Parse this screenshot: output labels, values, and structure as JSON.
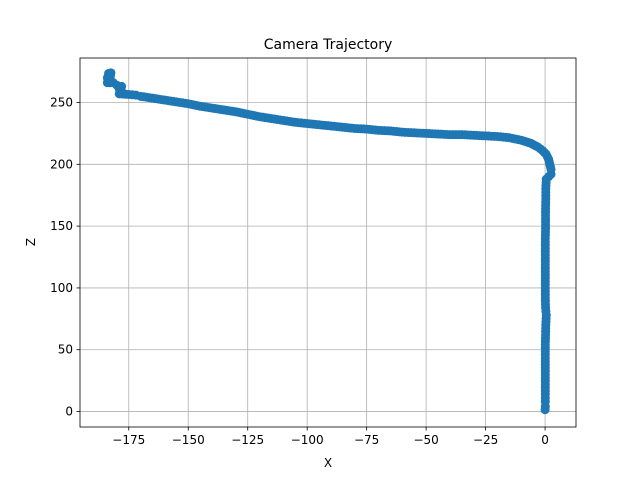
{
  "chart_data": {
    "type": "scatter",
    "title": "Camera Trajectory",
    "xlabel": "X",
    "ylabel": "Z",
    "xlim": [
      -195.5,
      13
    ],
    "ylim": [
      -12.5,
      286
    ],
    "grid": true,
    "marker_color": "#1f77b4",
    "xticks": [
      -175,
      -150,
      -125,
      -100,
      -75,
      -50,
      -25,
      0
    ],
    "xtick_labels": [
      "−175",
      "−150",
      "−125",
      "−100",
      "−75",
      "−50",
      "−25",
      "0"
    ],
    "yticks": [
      0,
      50,
      100,
      150,
      200,
      250
    ],
    "ytick_labels": [
      "0",
      "50",
      "100",
      "150",
      "200",
      "250"
    ],
    "series": [
      {
        "points": [
          [
            -183.5,
            273.5
          ],
          [
            -184,
            270
          ],
          [
            -182.5,
            274
          ],
          [
            -183,
            268
          ],
          [
            -184,
            266
          ],
          [
            -181.5,
            266
          ],
          [
            -180,
            264
          ],
          [
            -178,
            263
          ],
          [
            -179,
            261
          ],
          [
            -178,
            259
          ],
          [
            -179,
            257
          ],
          [
            -175,
            256.5
          ],
          [
            -172,
            256
          ],
          [
            -170,
            255
          ],
          [
            -165,
            253.5
          ],
          [
            -160,
            252
          ],
          [
            -155,
            250.5
          ],
          [
            -150,
            249
          ],
          [
            -145,
            247
          ],
          [
            -140,
            245.5
          ],
          [
            -135,
            244
          ],
          [
            -130,
            242.5
          ],
          [
            -125,
            240.5
          ],
          [
            -120,
            238.5
          ],
          [
            -115,
            237
          ],
          [
            -110,
            235.5
          ],
          [
            -105,
            234
          ],
          [
            -100,
            233
          ],
          [
            -95,
            232
          ],
          [
            -90,
            231
          ],
          [
            -85,
            230
          ],
          [
            -80,
            229
          ],
          [
            -75,
            228.5
          ],
          [
            -70,
            227.5
          ],
          [
            -65,
            227
          ],
          [
            -60,
            226
          ],
          [
            -55,
            225.5
          ],
          [
            -50,
            225
          ],
          [
            -45,
            224.5
          ],
          [
            -40,
            224
          ],
          [
            -35,
            224
          ],
          [
            -30,
            223.5
          ],
          [
            -25,
            223
          ],
          [
            -20,
            222.5
          ],
          [
            -15,
            221.5
          ],
          [
            -10,
            219.5
          ],
          [
            -6,
            217
          ],
          [
            -3,
            214
          ],
          [
            -1,
            211
          ],
          [
            0.5,
            208
          ],
          [
            1.5,
            204
          ],
          [
            2,
            200
          ],
          [
            2.5,
            196
          ],
          [
            2.5,
            192
          ],
          [
            1.5,
            190
          ],
          [
            0.5,
            188
          ],
          [
            0.3,
            180
          ],
          [
            0.3,
            172
          ],
          [
            0.2,
            164
          ],
          [
            0.2,
            156
          ],
          [
            0.2,
            148
          ],
          [
            0.1,
            140
          ],
          [
            0.1,
            132
          ],
          [
            0.1,
            124
          ],
          [
            0.1,
            116
          ],
          [
            0.1,
            108
          ],
          [
            0.1,
            100
          ],
          [
            0.1,
            92
          ],
          [
            0.2,
            84
          ],
          [
            0.5,
            78
          ],
          [
            0.3,
            70
          ],
          [
            0.2,
            62
          ],
          [
            0.1,
            54
          ],
          [
            0.1,
            46
          ],
          [
            0.1,
            38
          ],
          [
            0.1,
            30
          ],
          [
            0.1,
            22
          ],
          [
            0.1,
            14
          ],
          [
            0.1,
            8
          ],
          [
            0.1,
            4
          ],
          [
            0,
            1.5
          ]
        ]
      }
    ]
  }
}
